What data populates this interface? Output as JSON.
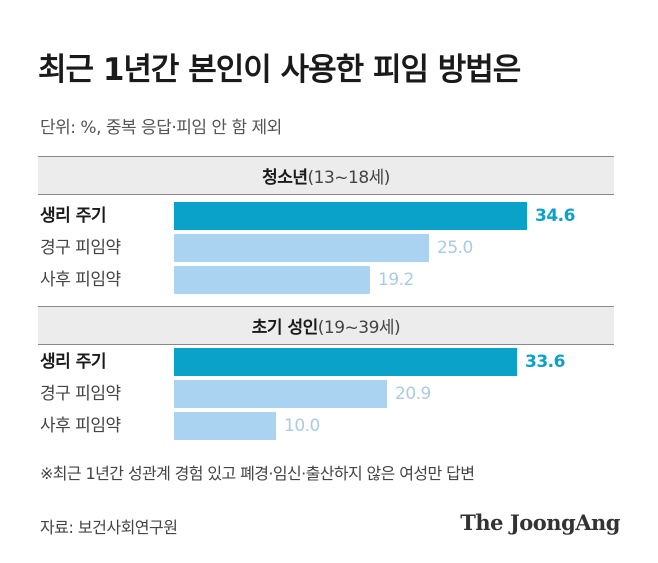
{
  "title": "최근 1년간 본인이 사용한 피임 방법은",
  "unit_note": "단위: %, 중복 응답·피임 안 함 제외",
  "footnote": "※최근 1년간 성관계 경험 있고 폐경·임신·출산하지 않은 여성만 답변",
  "source": "자료: 보건사회연구원",
  "logo": "The JoongAng",
  "colors": {
    "highlight": "#0aa2c8",
    "bar_light": "#a9d3f0",
    "header_bg": "#ececec"
  },
  "chart_data": [
    {
      "type": "bar",
      "orientation": "horizontal",
      "group_name": "청소년",
      "group_range": "(13~18세)",
      "categories": [
        "생리 주기",
        "경구 피임약",
        "사후 피임약"
      ],
      "values": [
        34.6,
        25.0,
        19.2
      ],
      "value_labels": [
        "34.6",
        "25.0",
        "19.2"
      ],
      "highlight_index": 0
    },
    {
      "type": "bar",
      "orientation": "horizontal",
      "group_name": "초기 성인",
      "group_range": "(19~39세)",
      "categories": [
        "생리 주기",
        "경구 피임약",
        "사후 피임약"
      ],
      "values": [
        33.6,
        20.9,
        10.0
      ],
      "value_labels": [
        "33.6",
        "20.9",
        "10.0"
      ],
      "highlight_index": 0
    }
  ]
}
